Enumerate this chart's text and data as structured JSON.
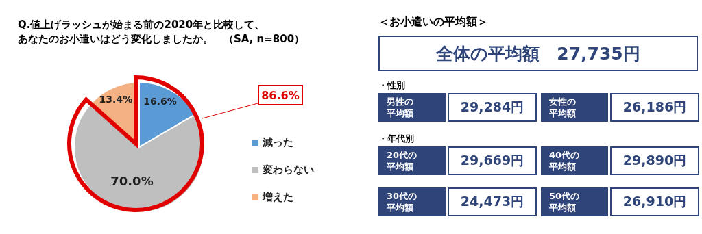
{
  "chart_data": [
    {
      "type": "pie",
      "title": "Q.値上げラッシュが始まる前の2020年と比較して、あなたのお小遣いはどう変化しましたか。　（SA, n=800）",
      "categories": [
        "減った",
        "変わらない",
        "増えた"
      ],
      "values": [
        16.6,
        70.0,
        13.4
      ],
      "value_labels": [
        "16.6%",
        "70.0%",
        "13.4%"
      ],
      "colors": [
        "#5b9bd5",
        "#bfbfbf",
        "#f4b183"
      ],
      "legend": "right",
      "annotations": [
        "86.6%"
      ]
    },
    {
      "type": "other",
      "title": "＜お小遣いの平均額＞",
      "annotations": [
        "全体の平均額　27,735円",
        "・性別",
        "男性の平均額",
        "29,284円",
        "女性の平均額",
        "26,186円",
        "・年代別",
        "20代の平均額",
        "29,669円",
        "40代の平均額",
        "29,890円",
        "30代の平均額",
        "24,473円",
        "50代の平均額",
        "26,910円"
      ]
    }
  ]
}
